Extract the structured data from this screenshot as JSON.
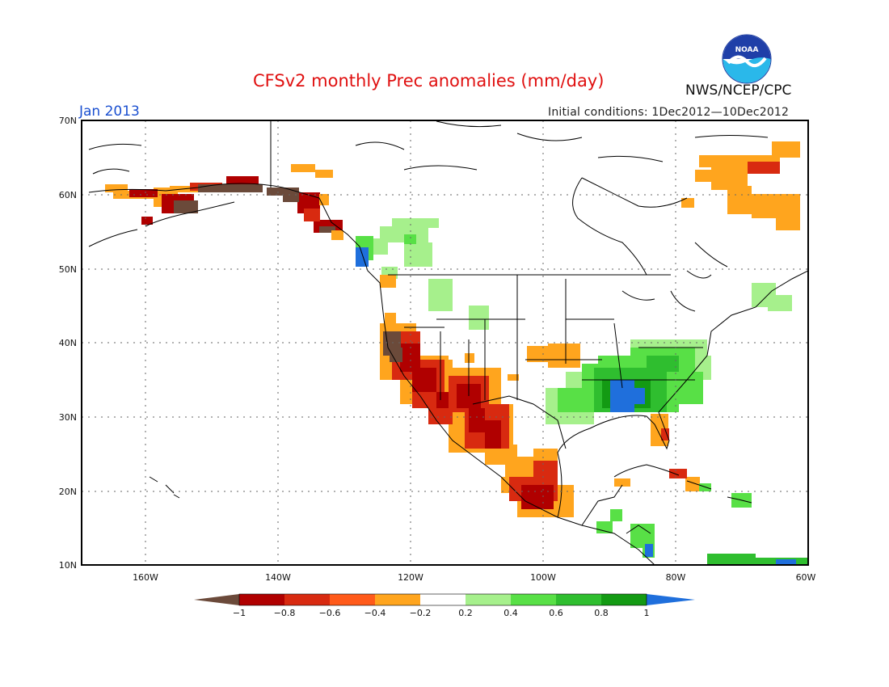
{
  "header": {
    "title": "CFSv2 monthly Prec anomalies (mm/day)",
    "month": "Jan 2013",
    "initial_conditions": "Initial conditions: 1Dec2012—10Dec2012",
    "agency": "NWS/NCEP/CPC",
    "logo_text": "NOAA"
  },
  "axes": {
    "lat_labels": [
      "70N",
      "60N",
      "50N",
      "40N",
      "30N",
      "20N",
      "10N"
    ],
    "lon_labels": [
      "160W",
      "140W",
      "120W",
      "100W",
      "80W",
      "60W"
    ]
  },
  "colorbar": {
    "labels": [
      "−1",
      "−0.8",
      "−0.6",
      "−0.4",
      "−0.2",
      "0.2",
      "0.4",
      "0.6",
      "0.8",
      "1"
    ],
    "colors": {
      "below_min": "#6b4a3a",
      "bins": [
        "#b00000",
        "#d82a10",
        "#ff5a1a",
        "#ffa51e",
        "#ffffff",
        "#a6f08c",
        "#58e046",
        "#2fbe2f",
        "#139a13"
      ],
      "above_max": "#1f6fdc"
    }
  },
  "legend_colors": {
    "lt_m1": "#6b4a3a",
    "m08": "#b00000",
    "m06": "#d82a10",
    "m04": "#ff5a1a",
    "m02": "#ffa51e",
    "p02": "#a6f08c",
    "p04": "#58e046",
    "p06": "#2fbe2f",
    "p08": "#139a13",
    "gt_1": "#1f6fdc"
  },
  "anomaly_regions": [
    {
      "name": "western alaska coast",
      "level": "m02"
    },
    {
      "name": "southern alaska",
      "level": "lt_m1"
    },
    {
      "name": "gulf of alaska",
      "level": "m08"
    },
    {
      "name": "british columbia coast",
      "level": "gt_1"
    },
    {
      "name": "western canada",
      "level": "p02"
    },
    {
      "name": "california",
      "level": "lt_m1"
    },
    {
      "name": "southwest us",
      "level": "m06"
    },
    {
      "name": "western mexico",
      "level": "m08"
    },
    {
      "name": "kansas",
      "level": "m02"
    },
    {
      "name": "southeast us",
      "level": "p06"
    },
    {
      "name": "alabama",
      "level": "gt_1"
    },
    {
      "name": "florida",
      "level": "m04"
    },
    {
      "name": "quebec labrador",
      "level": "m02"
    },
    {
      "name": "caribbean",
      "level": "m06"
    },
    {
      "name": "central america",
      "level": "p04"
    }
  ]
}
